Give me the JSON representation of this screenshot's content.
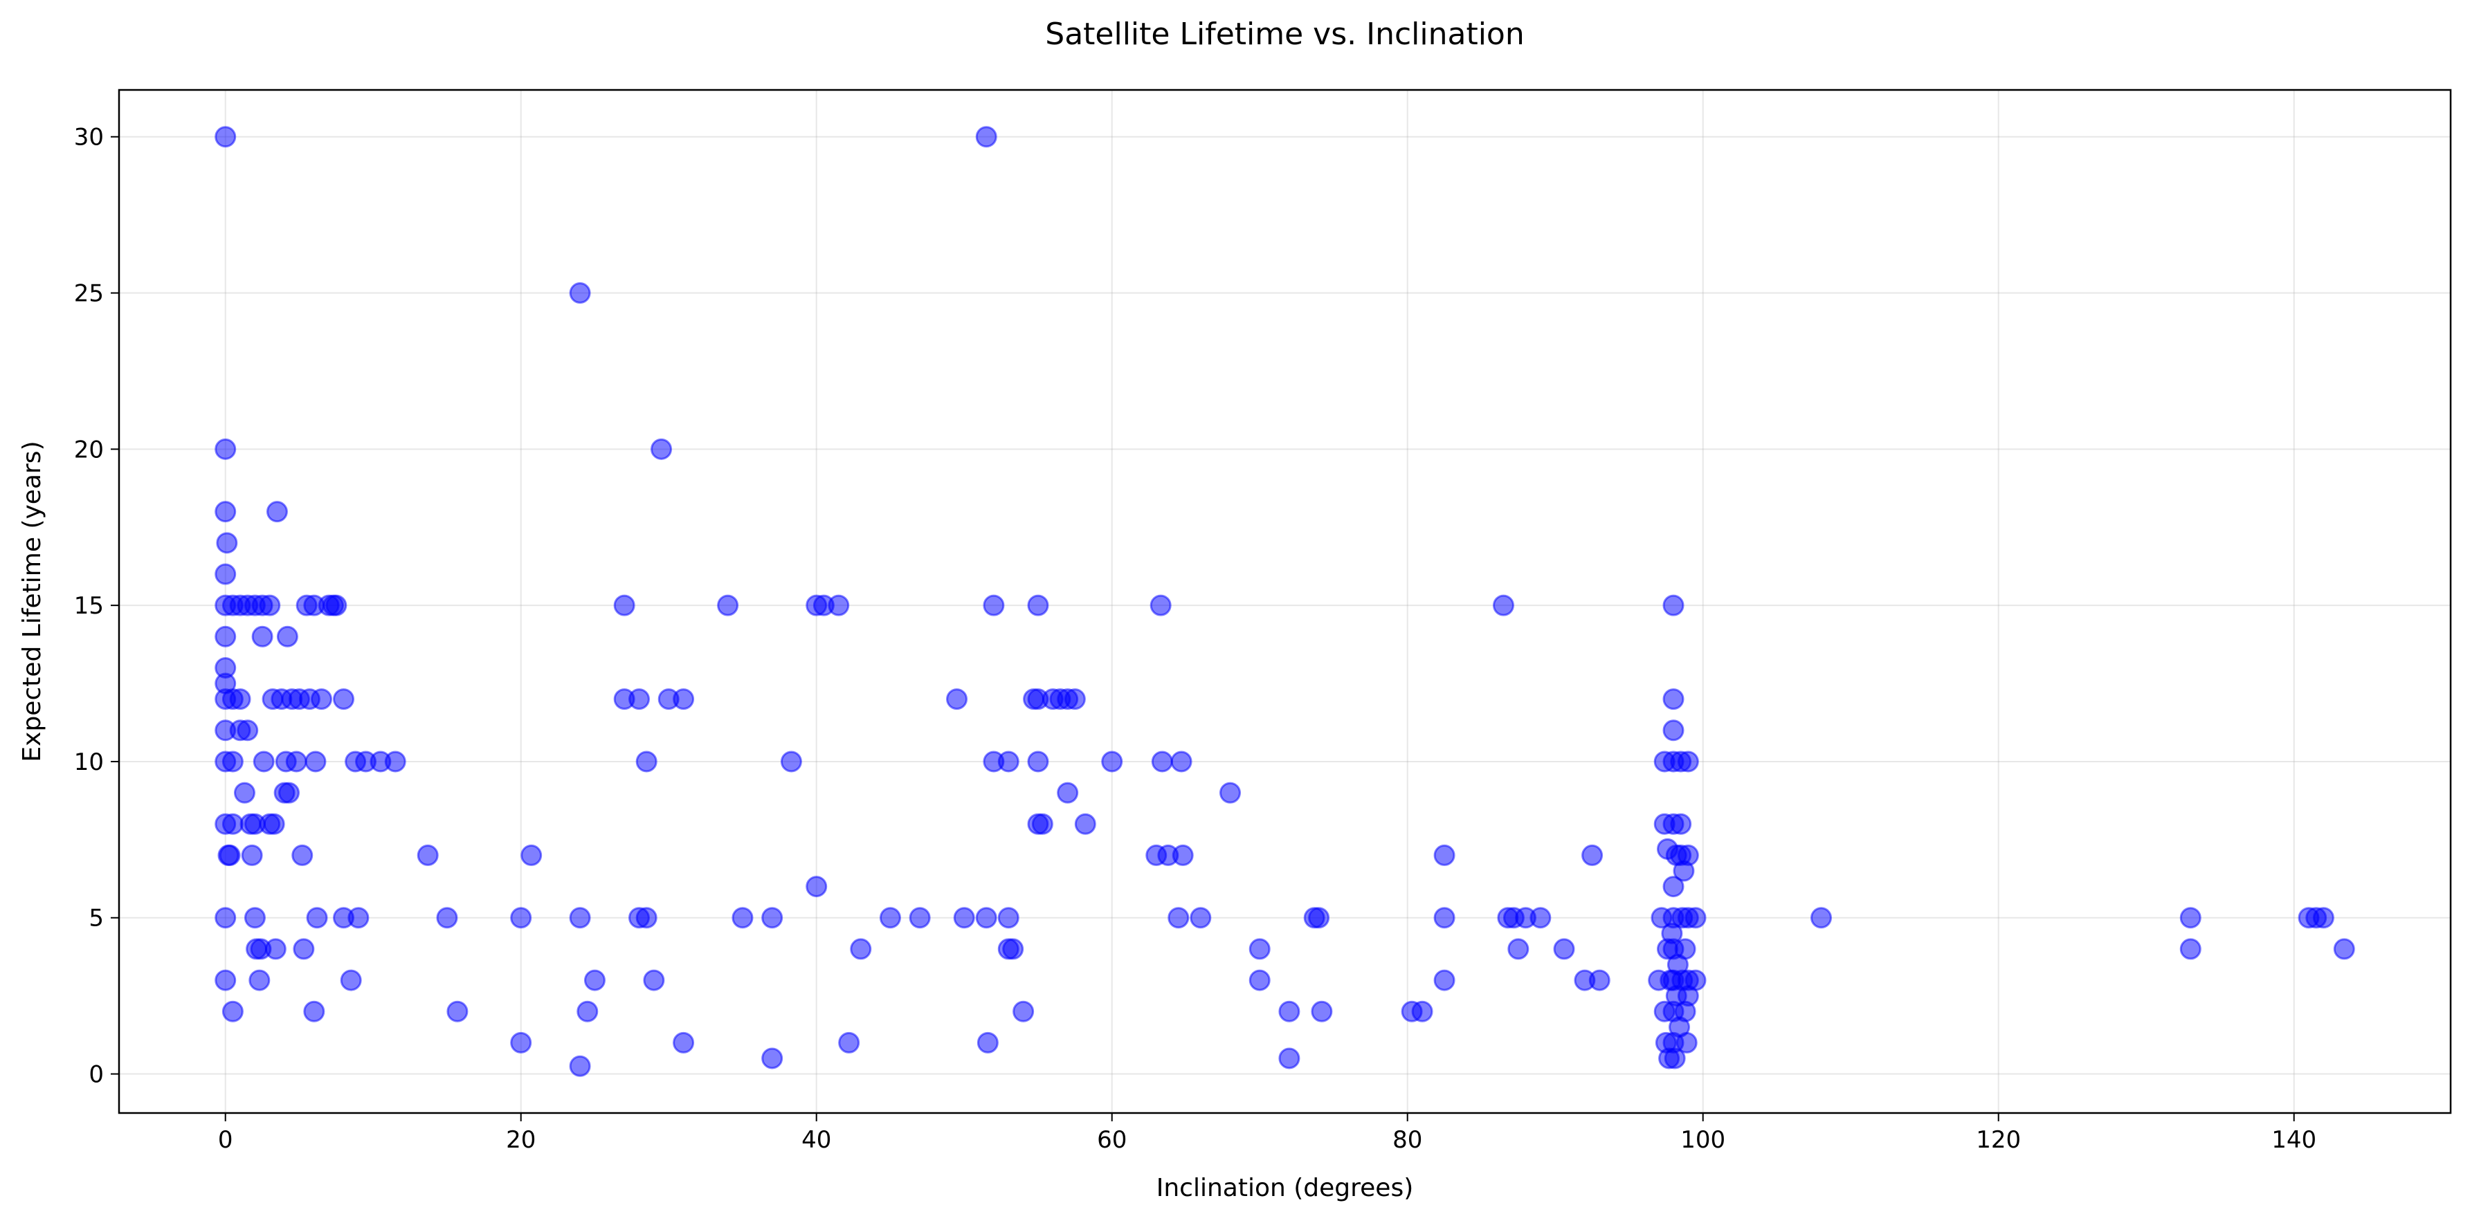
{
  "chart_data": {
    "type": "scatter",
    "title": "Satellite Lifetime vs. Inclination",
    "xlabel": "Inclination (degrees)",
    "ylabel": "Expected Lifetime (years)",
    "xlim": [
      -7.2,
      150.6
    ],
    "ylim": [
      -1.25,
      31.5
    ],
    "xticks": [
      0,
      20,
      40,
      60,
      80,
      100,
      120,
      140
    ],
    "yticks": [
      0,
      5,
      10,
      15,
      20,
      25,
      30
    ],
    "grid": true,
    "legend": "none",
    "point_color": "#0000ff",
    "points": [
      [
        0,
        30
      ],
      [
        0,
        20
      ],
      [
        0,
        18
      ],
      [
        0.1,
        17
      ],
      [
        0,
        16
      ],
      [
        0,
        15
      ],
      [
        0.5,
        15
      ],
      [
        1,
        15
      ],
      [
        1.5,
        15
      ],
      [
        2,
        15
      ],
      [
        2.5,
        15
      ],
      [
        3,
        15
      ],
      [
        0,
        14
      ],
      [
        0,
        13
      ],
      [
        0,
        12.5
      ],
      [
        0,
        12
      ],
      [
        0.5,
        12
      ],
      [
        1,
        12
      ],
      [
        0,
        11
      ],
      [
        1,
        11
      ],
      [
        1.5,
        11
      ],
      [
        0,
        10
      ],
      [
        0.5,
        10
      ],
      [
        0,
        8
      ],
      [
        0.5,
        8
      ],
      [
        0.2,
        7
      ],
      [
        0.3,
        7
      ],
      [
        0,
        5
      ],
      [
        0,
        3
      ],
      [
        0.5,
        2
      ],
      [
        1.3,
        9
      ],
      [
        1.7,
        8
      ],
      [
        2,
        8
      ],
      [
        1.8,
        7
      ],
      [
        2.5,
        14
      ],
      [
        2.6,
        10
      ],
      [
        2,
        5
      ],
      [
        2.1,
        4
      ],
      [
        2.4,
        4
      ],
      [
        2.3,
        3
      ],
      [
        3.2,
        12
      ],
      [
        3.5,
        18
      ],
      [
        3,
        8
      ],
      [
        3.3,
        8
      ],
      [
        3.4,
        4
      ],
      [
        3.8,
        12
      ],
      [
        4,
        9
      ],
      [
        4.1,
        10
      ],
      [
        4.2,
        14
      ],
      [
        4.3,
        9
      ],
      [
        4.5,
        12
      ],
      [
        4.8,
        10
      ],
      [
        5,
        12
      ],
      [
        5.2,
        7
      ],
      [
        5.3,
        4
      ],
      [
        5.5,
        15
      ],
      [
        5.7,
        12
      ],
      [
        6,
        15
      ],
      [
        6.1,
        10
      ],
      [
        6.2,
        5
      ],
      [
        6,
        2
      ],
      [
        6.5,
        12
      ],
      [
        7,
        15
      ],
      [
        7.3,
        15
      ],
      [
        7.5,
        15
      ],
      [
        8,
        12
      ],
      [
        8,
        5
      ],
      [
        8.5,
        3
      ],
      [
        8.8,
        10
      ],
      [
        9,
        5
      ],
      [
        9.5,
        10
      ],
      [
        10.5,
        10
      ],
      [
        11.5,
        10
      ],
      [
        13.7,
        7
      ],
      [
        15,
        5
      ],
      [
        15.7,
        2
      ],
      [
        20,
        5
      ],
      [
        20,
        1
      ],
      [
        20.7,
        7
      ],
      [
        24,
        25
      ],
      [
        24,
        5
      ],
      [
        24,
        0.25
      ],
      [
        24.5,
        2
      ],
      [
        25,
        3
      ],
      [
        27,
        15
      ],
      [
        27,
        12
      ],
      [
        28,
        12
      ],
      [
        28,
        5
      ],
      [
        28.5,
        10
      ],
      [
        28.5,
        5
      ],
      [
        29,
        3
      ],
      [
        29.5,
        20
      ],
      [
        30,
        12
      ],
      [
        31,
        12
      ],
      [
        31,
        1
      ],
      [
        34,
        15
      ],
      [
        35,
        5
      ],
      [
        37,
        5
      ],
      [
        37,
        0.5
      ],
      [
        38.3,
        10
      ],
      [
        40,
        15
      ],
      [
        40.5,
        15
      ],
      [
        41.5,
        15
      ],
      [
        40,
        6
      ],
      [
        42.2,
        1
      ],
      [
        43,
        4
      ],
      [
        45,
        5
      ],
      [
        47,
        5
      ],
      [
        49.5,
        12
      ],
      [
        50,
        5
      ],
      [
        51.5,
        30
      ],
      [
        51.5,
        5
      ],
      [
        51.6,
        1
      ],
      [
        52,
        15
      ],
      [
        52,
        10
      ],
      [
        53,
        10
      ],
      [
        53,
        5
      ],
      [
        53,
        4
      ],
      [
        53.3,
        4
      ],
      [
        54,
        2
      ],
      [
        54.7,
        12
      ],
      [
        55,
        15
      ],
      [
        55,
        12
      ],
      [
        55,
        10
      ],
      [
        55,
        8
      ],
      [
        55.3,
        8
      ],
      [
        56,
        12
      ],
      [
        56.5,
        12
      ],
      [
        57,
        12
      ],
      [
        57.5,
        12
      ],
      [
        57,
        9
      ],
      [
        58.2,
        8
      ],
      [
        60,
        10
      ],
      [
        63,
        7
      ],
      [
        63.3,
        15
      ],
      [
        63.4,
        10
      ],
      [
        63.8,
        7
      ],
      [
        64.5,
        5
      ],
      [
        64.7,
        10
      ],
      [
        64.8,
        7
      ],
      [
        66,
        5
      ],
      [
        68,
        9
      ],
      [
        70,
        4
      ],
      [
        70,
        3
      ],
      [
        72,
        2
      ],
      [
        72,
        0.5
      ],
      [
        73.7,
        5
      ],
      [
        74,
        5
      ],
      [
        74.2,
        2
      ],
      [
        80.3,
        2
      ],
      [
        81,
        2
      ],
      [
        82.5,
        7
      ],
      [
        82.5,
        5
      ],
      [
        82.5,
        3
      ],
      [
        86.5,
        15
      ],
      [
        86.8,
        5
      ],
      [
        87.2,
        5
      ],
      [
        87.5,
        4
      ],
      [
        88,
        5
      ],
      [
        89,
        5
      ],
      [
        90.6,
        4
      ],
      [
        92,
        3
      ],
      [
        92.5,
        7
      ],
      [
        93,
        3
      ],
      [
        97,
        3
      ],
      [
        97.2,
        5
      ],
      [
        97.4,
        2
      ],
      [
        97.4,
        8
      ],
      [
        97.4,
        10
      ],
      [
        97.5,
        1
      ],
      [
        97.6,
        4
      ],
      [
        97.6,
        7.2
      ],
      [
        97.7,
        0.5
      ],
      [
        97.8,
        3
      ],
      [
        97.9,
        4.5
      ],
      [
        98,
        15
      ],
      [
        98,
        12
      ],
      [
        98,
        11
      ],
      [
        98,
        10
      ],
      [
        98,
        8
      ],
      [
        98,
        6
      ],
      [
        98,
        5
      ],
      [
        98,
        4
      ],
      [
        98,
        3
      ],
      [
        98,
        2
      ],
      [
        98,
        1
      ],
      [
        98.1,
        0.5
      ],
      [
        98.2,
        7
      ],
      [
        98.2,
        2.5
      ],
      [
        98.3,
        3.5
      ],
      [
        98.4,
        1.5
      ],
      [
        98.5,
        10
      ],
      [
        98.5,
        8
      ],
      [
        98.5,
        7
      ],
      [
        98.6,
        5
      ],
      [
        98.6,
        3
      ],
      [
        98.7,
        6.5
      ],
      [
        98.8,
        4
      ],
      [
        98.8,
        2
      ],
      [
        98.9,
        1
      ],
      [
        99,
        10
      ],
      [
        99,
        7
      ],
      [
        99,
        5
      ],
      [
        99,
        3
      ],
      [
        99,
        2.5
      ],
      [
        99.5,
        5
      ],
      [
        99.5,
        3
      ],
      [
        108,
        5
      ],
      [
        133,
        5
      ],
      [
        133,
        4
      ],
      [
        141,
        5
      ],
      [
        141.5,
        5
      ],
      [
        142,
        5
      ],
      [
        143.4,
        4
      ]
    ]
  }
}
